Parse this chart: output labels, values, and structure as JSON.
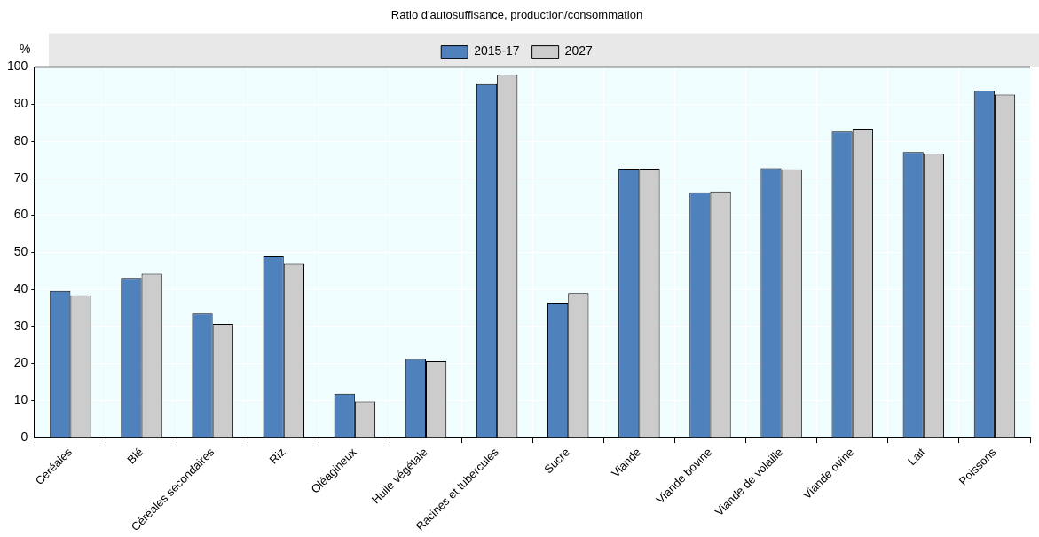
{
  "chart_data": {
    "type": "bar",
    "title": "Ratio d'autosuffisance, production/consommation",
    "ylabel": "%",
    "categories": [
      "Céréales",
      "Blé",
      "Céréales secondaires",
      "Riz",
      "Oléagineux",
      "Huile végétale",
      "Racines et tubercules",
      "Sucre",
      "Viande",
      "Viande bovine",
      "Viande de volaille",
      "Viande ovine",
      "Lait",
      "Poissons"
    ],
    "series": [
      {
        "name": "2015-17",
        "color": "#4f81bd",
        "values": [
          39.6,
          43.1,
          33.5,
          49.1,
          11.8,
          21.2,
          95.4,
          36.4,
          72.6,
          66.2,
          72.7,
          82.6,
          77.1,
          93.7
        ]
      },
      {
        "name": "2027",
        "color": "#cccccc",
        "values": [
          38.4,
          44.2,
          30.7,
          47.1,
          9.7,
          20.6,
          97.9,
          39.0,
          72.6,
          66.4,
          72.4,
          83.4,
          76.6,
          92.6
        ]
      }
    ],
    "ylim": [
      0,
      100
    ],
    "yticks": [
      0,
      10,
      20,
      30,
      40,
      50,
      60,
      70,
      80,
      90,
      100
    ],
    "grid": true,
    "legend": "top"
  }
}
